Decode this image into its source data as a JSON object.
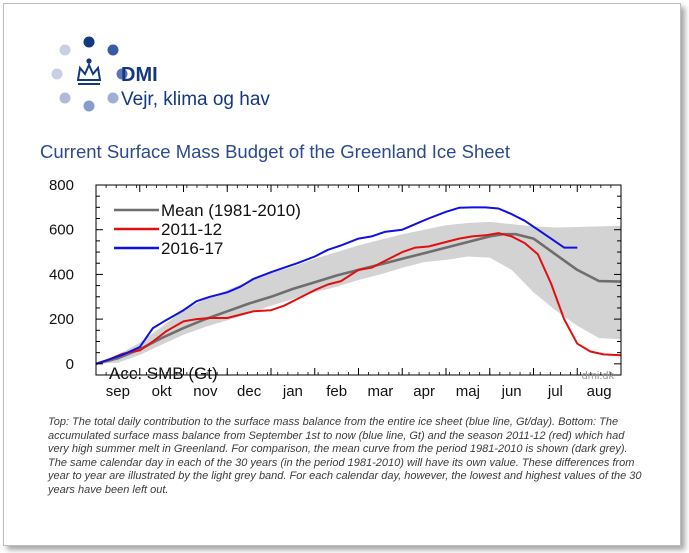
{
  "header": {
    "brand_name": "DMI",
    "tagline": "Vejr, klima og hav",
    "logo_icon": "crown-icon",
    "logo_color": "#14387f"
  },
  "title": "Current Surface Mass Budget of the Greenland Ice Sheet",
  "caption": "Top: The total daily contribution to the surface mass balance from the entire ice sheet (blue line, Gt/day). Bottom: The accumulated surface mass balance from September 1st to now (blue line, Gt) and the season 2011-12 (red) which had very high summer melt in Greenland. For comparison, the mean curve from the period 1981-2010 is shown (dark grey). The same calendar day in each of the 30 years (in the period 1981-2010) will have its own value. These differences from year to year are illustrated by the light grey band. For each calendar day, however, the lowest and highest values of the 30 years have been left out.",
  "chart_data": {
    "type": "line",
    "inner_label": "Acc. SMB (Gt)",
    "watermark": "dmi.dk",
    "x_tick_labels": [
      "sep",
      "okt",
      "nov",
      "dec",
      "jan",
      "feb",
      "mar",
      "apr",
      "maj",
      "jun",
      "jul",
      "aug"
    ],
    "x_range_months": [
      0,
      12
    ],
    "ylim": [
      -50,
      800
    ],
    "y_ticks": [
      0,
      200,
      400,
      600,
      800
    ],
    "legend_position": "top-left",
    "band": {
      "color": "#d3d3d3",
      "x": [
        0,
        0.5,
        1,
        1.5,
        2,
        2.5,
        3,
        3.5,
        4,
        4.5,
        5,
        5.5,
        6,
        6.5,
        7,
        7.5,
        8,
        8.5,
        9,
        9.5,
        10,
        10.5,
        11,
        11.5,
        12
      ],
      "upper": [
        0,
        40,
        95,
        165,
        240,
        290,
        330,
        370,
        405,
        435,
        470,
        500,
        530,
        555,
        580,
        600,
        620,
        630,
        635,
        625,
        615,
        610,
        612,
        615,
        618
      ],
      "lower": [
        0,
        5,
        40,
        85,
        130,
        165,
        195,
        225,
        260,
        290,
        320,
        345,
        375,
        400,
        430,
        455,
        465,
        480,
        475,
        420,
        320,
        240,
        170,
        115,
        110
      ]
    },
    "series": [
      {
        "name": "Mean (1981-2010)",
        "color": "#6e6e6e",
        "x": [
          0,
          0.5,
          1,
          1.5,
          2,
          2.5,
          3,
          3.5,
          4,
          4.5,
          5,
          5.5,
          6,
          6.5,
          7,
          7.5,
          8,
          8.5,
          9,
          9.3,
          9.6,
          10,
          10.5,
          11,
          11.5,
          12
        ],
        "y": [
          0,
          25,
          65,
          115,
          160,
          200,
          235,
          270,
          300,
          335,
          365,
          395,
          420,
          445,
          470,
          495,
          520,
          545,
          570,
          580,
          580,
          560,
          490,
          420,
          370,
          368
        ]
      },
      {
        "name": "2011-12",
        "color": "#e01010",
        "x": [
          0,
          0.3,
          0.6,
          1,
          1.3,
          1.6,
          2,
          2.3,
          2.6,
          3,
          3.3,
          3.6,
          4,
          4.3,
          4.6,
          5,
          5.3,
          5.6,
          6,
          6.3,
          6.6,
          7,
          7.3,
          7.6,
          8,
          8.3,
          8.6,
          8.9,
          9.2,
          9.5,
          9.8,
          10.1,
          10.4,
          10.7,
          11,
          11.3,
          11.6,
          12
        ],
        "y": [
          0,
          20,
          45,
          60,
          100,
          145,
          190,
          200,
          205,
          205,
          220,
          235,
          240,
          260,
          290,
          330,
          355,
          370,
          420,
          430,
          460,
          500,
          520,
          525,
          545,
          560,
          570,
          575,
          585,
          570,
          540,
          490,
          360,
          200,
          90,
          55,
          42,
          38
        ]
      },
      {
        "name": "2016-17",
        "color": "#1010e0",
        "x": [
          0,
          0.3,
          0.6,
          1,
          1.3,
          1.6,
          2,
          2.3,
          2.6,
          3,
          3.3,
          3.6,
          4,
          4.3,
          4.6,
          5,
          5.3,
          5.6,
          6,
          6.3,
          6.6,
          7,
          7.3,
          7.6,
          8,
          8.3,
          8.6,
          8.9,
          9.2,
          9.5,
          9.8,
          10.1,
          10.4,
          10.7,
          11
        ],
        "y": [
          0,
          20,
          40,
          75,
          160,
          195,
          240,
          280,
          300,
          320,
          345,
          380,
          410,
          430,
          450,
          480,
          510,
          530,
          560,
          570,
          590,
          600,
          625,
          650,
          680,
          698,
          700,
          700,
          695,
          670,
          640,
          600,
          560,
          520,
          520
        ]
      }
    ]
  }
}
